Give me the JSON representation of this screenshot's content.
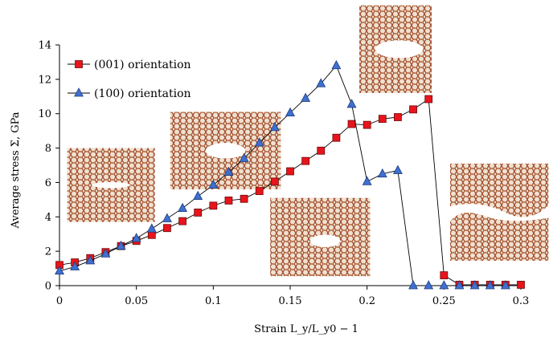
{
  "chart_data": {
    "type": "line",
    "title": "",
    "xlabel": "Strain L_y/L_y0 − 1",
    "ylabel": "Average stress Σ, GPa",
    "xlim": [
      0,
      0.3
    ],
    "ylim": [
      0,
      14
    ],
    "x_ticks": [
      "0",
      "0.05",
      "0.1",
      "0.15",
      "0.2",
      "0.25",
      "0.3"
    ],
    "y_ticks": [
      "0",
      "2",
      "4",
      "6",
      "8",
      "10",
      "12",
      "14"
    ],
    "grid": false,
    "legend_position": "top-left",
    "series": [
      {
        "name": "(001) orientation",
        "marker": "square",
        "color": "#e8141c",
        "x": [
          0,
          0.01,
          0.02,
          0.03,
          0.04,
          0.05,
          0.06,
          0.07,
          0.08,
          0.09,
          0.1,
          0.11,
          0.12,
          0.13,
          0.14,
          0.15,
          0.16,
          0.17,
          0.18,
          0.19,
          0.2,
          0.21,
          0.22,
          0.23,
          0.24,
          0.25,
          0.26,
          0.27,
          0.28,
          0.29,
          0.3
        ],
        "y": [
          1.2,
          1.35,
          1.6,
          1.95,
          2.3,
          2.6,
          2.95,
          3.35,
          3.75,
          4.25,
          4.65,
          4.95,
          5.05,
          5.5,
          6.05,
          6.65,
          7.25,
          7.85,
          8.6,
          9.4,
          9.35,
          9.7,
          9.8,
          10.25,
          10.85,
          0.6,
          0.05,
          0.05,
          0.05,
          0.05,
          0.05
        ]
      },
      {
        "name": "(100) orientation",
        "marker": "triangle",
        "color": "#3f6fd0",
        "x": [
          0,
          0.01,
          0.02,
          0.03,
          0.04,
          0.05,
          0.06,
          0.07,
          0.08,
          0.09,
          0.1,
          0.11,
          0.12,
          0.13,
          0.14,
          0.15,
          0.16,
          0.17,
          0.18,
          0.19,
          0.2,
          0.21,
          0.22,
          0.23,
          0.24,
          0.25,
          0.26,
          0.27,
          0.28,
          0.29
        ],
        "y": [
          0.85,
          1.1,
          1.45,
          1.85,
          2.3,
          2.75,
          3.3,
          3.9,
          4.5,
          5.2,
          5.85,
          6.6,
          7.4,
          8.3,
          9.2,
          10.05,
          10.9,
          11.75,
          12.8,
          10.55,
          6.05,
          6.5,
          6.7,
          0,
          0,
          0,
          0,
          0,
          0,
          0
        ]
      }
    ],
    "insets": [
      {
        "name": "lattice-inset-1",
        "x0": 0.005,
        "y_top": 8.0,
        "x1": 0.062,
        "y_bottom": 3.7,
        "hole": "slit"
      },
      {
        "name": "lattice-inset-2",
        "x0": 0.072,
        "y_top": 10.1,
        "x1": 0.144,
        "y_bottom": 5.6,
        "hole": "ellipse"
      },
      {
        "name": "lattice-inset-3",
        "x0": 0.137,
        "y_top": 5.1,
        "x1": 0.202,
        "y_bottom": 0.55,
        "hole": "ellipse-small"
      },
      {
        "name": "lattice-inset-4",
        "x0": 0.195,
        "y_top": 16.3,
        "x1": 0.242,
        "y_bottom": 11.2,
        "hole": "wide"
      },
      {
        "name": "lattice-inset-5",
        "x0": 0.254,
        "y_top": 7.1,
        "x1": 0.318,
        "y_bottom": 1.45,
        "hole": "fracture"
      }
    ]
  }
}
